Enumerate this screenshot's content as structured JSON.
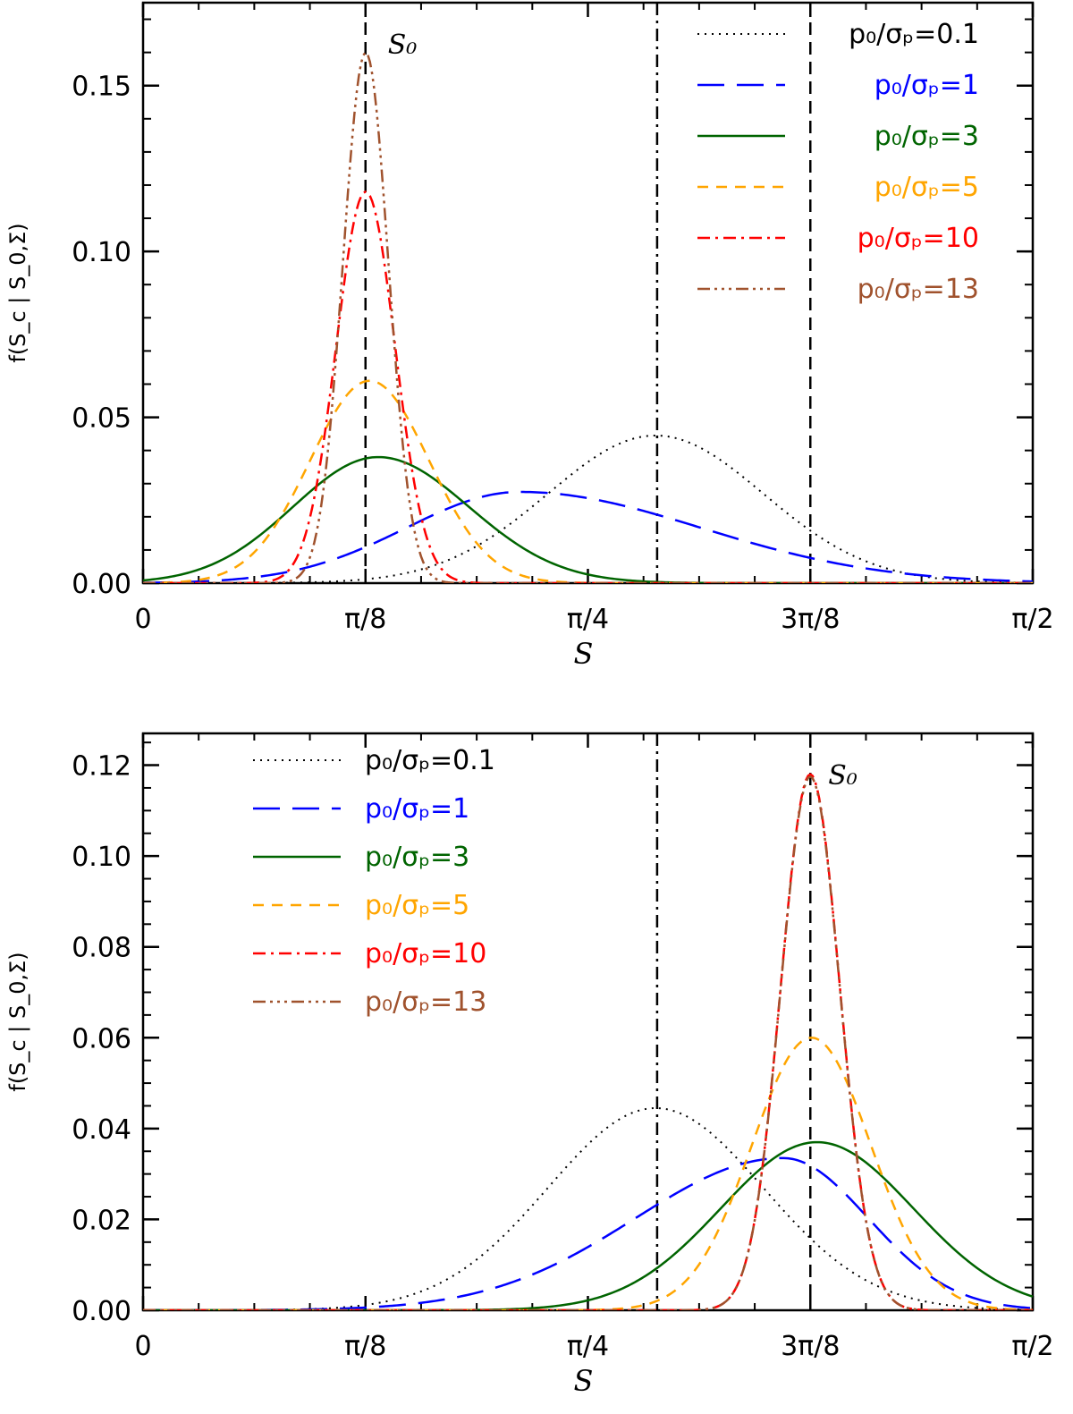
{
  "chart_data": [
    {
      "type": "line",
      "panel": "top",
      "xlabel": "S",
      "ylabel": "f(S_c | S_0,Σ)",
      "xlim": [
        0,
        1.5708
      ],
      "ylim": [
        0,
        0.175
      ],
      "xticks": [
        {
          "value": 0,
          "label": "0"
        },
        {
          "value": 0.3927,
          "label": "π/8"
        },
        {
          "value": 0.7854,
          "label": "π/4"
        },
        {
          "value": 1.1781,
          "label": "3π/8"
        },
        {
          "value": 1.5708,
          "label": "π/2"
        }
      ],
      "yticks": [
        {
          "value": 0.0,
          "label": "0.00"
        },
        {
          "value": 0.05,
          "label": "0.05"
        },
        {
          "value": 0.1,
          "label": "0.10"
        },
        {
          "value": 0.15,
          "label": "0.15"
        }
      ],
      "s0_label": "S₀",
      "vlines": [
        {
          "x": 0.3927,
          "style": "dashed",
          "name": "S0"
        },
        {
          "x": 0.9076,
          "style": "dashdot",
          "name": "mid"
        },
        {
          "x": 1.1781,
          "style": "dashed",
          "name": "right"
        }
      ],
      "legend_position": "top-right",
      "series": [
        {
          "name": "p₀/σₚ=0.1",
          "color": "#000000",
          "dash": "2 6",
          "width": 2,
          "mu": 0.905,
          "sigma": 0.19,
          "amp": 0.0445
        },
        {
          "name": "p₀/σₚ=1",
          "color": "#0000ff",
          "dash": "30 14",
          "width": 2.5,
          "peak": 0.665,
          "sl": 0.2,
          "sr": 0.32,
          "amp": 0.0275
        },
        {
          "name": "p₀/σₚ=3",
          "color": "#006400",
          "dash": "",
          "width": 2.5,
          "peak": 0.415,
          "sl": 0.15,
          "sr": 0.16,
          "amp": 0.038
        },
        {
          "name": "p₀/σₚ=5",
          "color": "#ffa500",
          "dash": "12 9",
          "width": 2.5,
          "mu": 0.4,
          "sigma": 0.105,
          "amp": 0.061
        },
        {
          "name": "p₀/σₚ=10",
          "color": "#ff0000",
          "dash": "14 6 3 6",
          "width": 2.5,
          "mu": 0.393,
          "sigma": 0.052,
          "amp": 0.118
        },
        {
          "name": "p₀/σₚ=13",
          "color": "#a0522d",
          "dash": "14 5 3 5 3 5 3 5",
          "width": 2.5,
          "mu": 0.393,
          "sigma": 0.04,
          "amp": 0.16
        }
      ]
    },
    {
      "type": "line",
      "panel": "bottom",
      "xlabel": "S",
      "ylabel": "f(S_c | S_0,Σ)",
      "xlim": [
        0,
        1.5708
      ],
      "ylim": [
        0,
        0.127
      ],
      "xticks": [
        {
          "value": 0,
          "label": "0"
        },
        {
          "value": 0.3927,
          "label": "π/8"
        },
        {
          "value": 0.7854,
          "label": "π/4"
        },
        {
          "value": 1.1781,
          "label": "3π/8"
        },
        {
          "value": 1.5708,
          "label": "π/2"
        }
      ],
      "yticks": [
        {
          "value": 0.0,
          "label": "0.00"
        },
        {
          "value": 0.02,
          "label": "0.02"
        },
        {
          "value": 0.04,
          "label": "0.04"
        },
        {
          "value": 0.06,
          "label": "0.06"
        },
        {
          "value": 0.08,
          "label": "0.08"
        },
        {
          "value": 0.1,
          "label": "0.10"
        },
        {
          "value": 0.12,
          "label": "0.12"
        }
      ],
      "s0_label": "S₀",
      "vlines": [
        {
          "x": 0.9076,
          "style": "dashdot",
          "name": "mid"
        },
        {
          "x": 1.1781,
          "style": "dashed",
          "name": "S0"
        }
      ],
      "legend_position": "top-left",
      "series": [
        {
          "name": "p₀/σₚ=0.1",
          "color": "#000000",
          "dash": "2 6",
          "width": 2,
          "mu": 0.905,
          "sigma": 0.19,
          "amp": 0.0445
        },
        {
          "name": "p₀/σₚ=1",
          "color": "#0000ff",
          "dash": "30 14",
          "width": 2.5,
          "peak": 1.13,
          "sl": 0.26,
          "sr": 0.15,
          "amp": 0.0335
        },
        {
          "name": "p₀/σₚ=3",
          "color": "#006400",
          "dash": "",
          "width": 2.5,
          "peak": 1.19,
          "sl": 0.17,
          "sr": 0.17,
          "amp": 0.037
        },
        {
          "name": "p₀/σₚ=5",
          "color": "#ffa500",
          "dash": "12 9",
          "width": 2.5,
          "mu": 1.18,
          "sigma": 0.105,
          "amp": 0.06
        },
        {
          "name": "p₀/σₚ=10",
          "color": "#ff0000",
          "dash": "14 6 3 6",
          "width": 2.5,
          "mu": 1.178,
          "sigma": 0.052,
          "amp": 0.118
        },
        {
          "name": "p₀/σₚ=13",
          "color": "#a0522d",
          "dash": "14 5 3 5 3 5 3 5",
          "width": 2.5,
          "mu": 1.178,
          "sigma": 0.052,
          "amp": 0.1175
        }
      ]
    }
  ]
}
